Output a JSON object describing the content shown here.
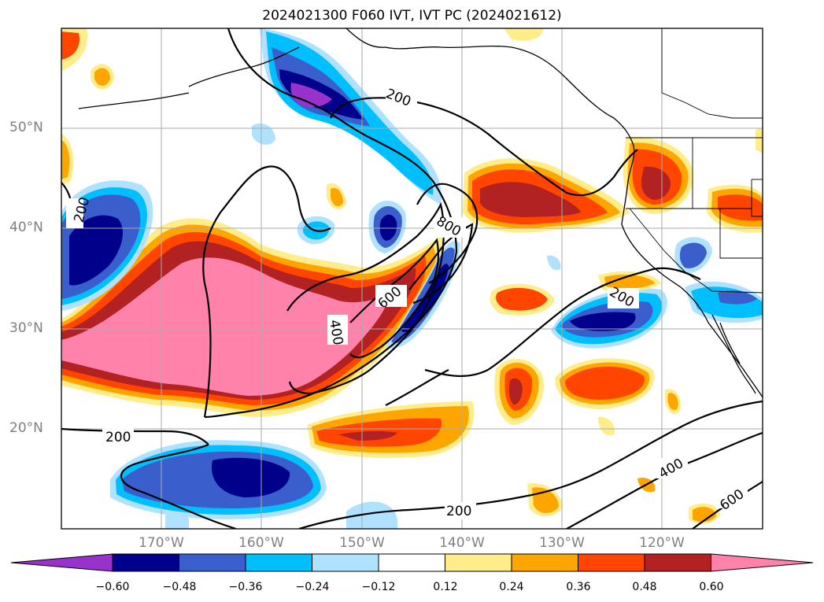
{
  "title": "2024021300 F060 IVT, IVT PC (2024021612)",
  "map": {
    "projection": "lat-lon",
    "lon_range": [
      -180,
      -110
    ],
    "lat_range": [
      10,
      60
    ],
    "grid": true,
    "lon_labels": [
      "170°W",
      "160°W",
      "150°W",
      "140°W",
      "130°W",
      "120°W"
    ],
    "lon_values": [
      -170,
      -160,
      -150,
      -140,
      -130,
      -120
    ],
    "lat_labels": [
      "50°N",
      "40°N",
      "30°N",
      "20°N"
    ],
    "lat_values": [
      50,
      40,
      30,
      20
    ],
    "contour_labels": [
      "200",
      "200",
      "200",
      "200",
      "200",
      "400",
      "400",
      "600",
      "600",
      "800"
    ]
  },
  "colorbar": {
    "ticks": [
      "−0.60",
      "−0.48",
      "−0.36",
      "−0.24",
      "−0.12",
      "0.12",
      "0.24",
      "0.36",
      "0.48",
      "0.60"
    ],
    "colors": [
      "#9932cc",
      "#00008b",
      "#3a5fcd",
      "#00bfff",
      "#b0e2ff",
      "#ffffff",
      "#ffec8b",
      "#ffa500",
      "#ff4500",
      "#b22222",
      "#ff82ab"
    ]
  }
}
